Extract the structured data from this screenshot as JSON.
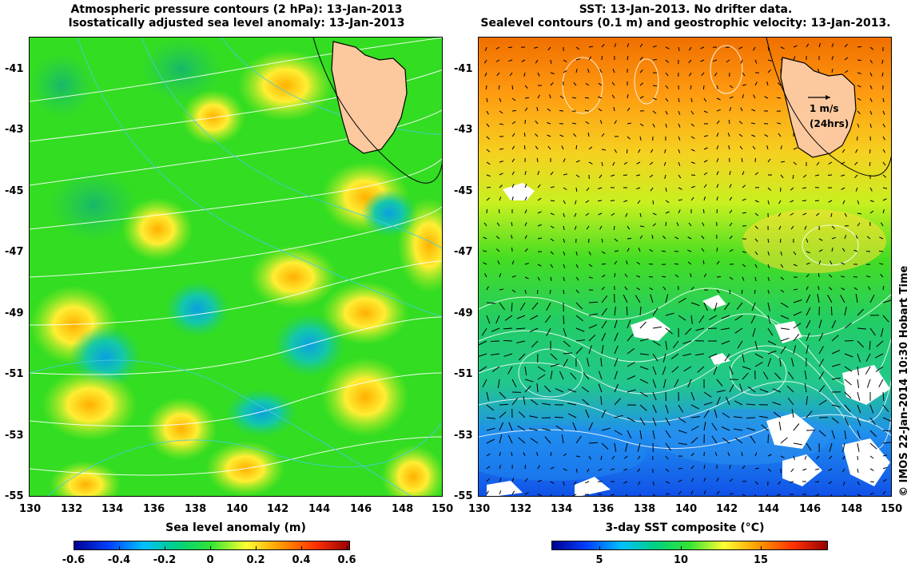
{
  "left_panel": {
    "title_line1": "Atmospheric pressure contours (2 hPa): 13-Jan-2013",
    "title_line2": "Isostatically adjusted sea level anomaly: 13-Jan-2013",
    "colorbar_label": "Sea level anomaly (m)",
    "colorbar_ticks": [
      "-0.6",
      "-0.4",
      "-0.2",
      "0",
      "0.2",
      "0.4",
      "0.6"
    ],
    "colorbar_colors": [
      "#00008f",
      "#0040ff",
      "#00bfff",
      "#00d080",
      "#33e533",
      "#ffff33",
      "#ff9900",
      "#ff3300",
      "#990000"
    ]
  },
  "right_panel": {
    "title_line1": "SST: 13-Jan-2013. No drifter data.",
    "title_line2": "Sealevel contours (0.1 m) and geostrophic velocity: 13-Jan-2013.",
    "colorbar_label": "3-day SST composite (°C)",
    "colorbar_ticks": [
      "5",
      "10",
      "15"
    ],
    "colorbar_colors": [
      "#00008f",
      "#0040ff",
      "#00bfff",
      "#00d080",
      "#33e533",
      "#ffff33",
      "#ff9900",
      "#ff3300",
      "#990000"
    ],
    "legend_speed": "1 m/s",
    "legend_duration": "(24hrs)"
  },
  "axes": {
    "x_ticks": [
      "130",
      "132",
      "134",
      "136",
      "138",
      "140",
      "142",
      "144",
      "146",
      "148",
      "150"
    ],
    "y_ticks": [
      "-41",
      "-43",
      "-45",
      "-47",
      "-49",
      "-51",
      "-53",
      "-55"
    ]
  },
  "credit": "© IMOS 22-Jan-2014 10:30 Hobart Time",
  "colors": {
    "land": "#fcc99e",
    "sea_background_left": "#33dd22",
    "sst_north": "#ff8a00",
    "sst_mid": "#aef020",
    "sst_south": "#2d7bff",
    "contour": "#ffffff",
    "coast": "#000000"
  }
}
